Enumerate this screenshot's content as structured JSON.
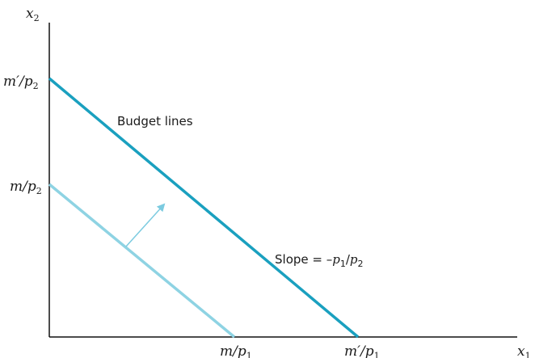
{
  "axes": {
    "x_label": "x",
    "x_label_sub": "1",
    "y_label": "x",
    "y_label_sub": "2"
  },
  "y_ticks": {
    "new_intercept": {
      "num": "m′/p",
      "sub": "2"
    },
    "old_intercept": {
      "num": "m/p",
      "sub": "2"
    }
  },
  "x_ticks": {
    "old_intercept": {
      "num": "m/p",
      "sub": "1"
    },
    "new_intercept": {
      "num": "m′/p",
      "sub": "1"
    }
  },
  "annotations": {
    "budget_lines": "Budget lines",
    "slope_prefix": "Slope = –",
    "slope_p1": "p",
    "slope_p1_sub": "1",
    "slope_slash": "/",
    "slope_p2": "p",
    "slope_p2_sub": "2"
  },
  "colors": {
    "new_line": "#1aa0bf",
    "old_line": "#8ed3e3",
    "arrow": "#7ccbe0",
    "axis": "#111111"
  }
}
